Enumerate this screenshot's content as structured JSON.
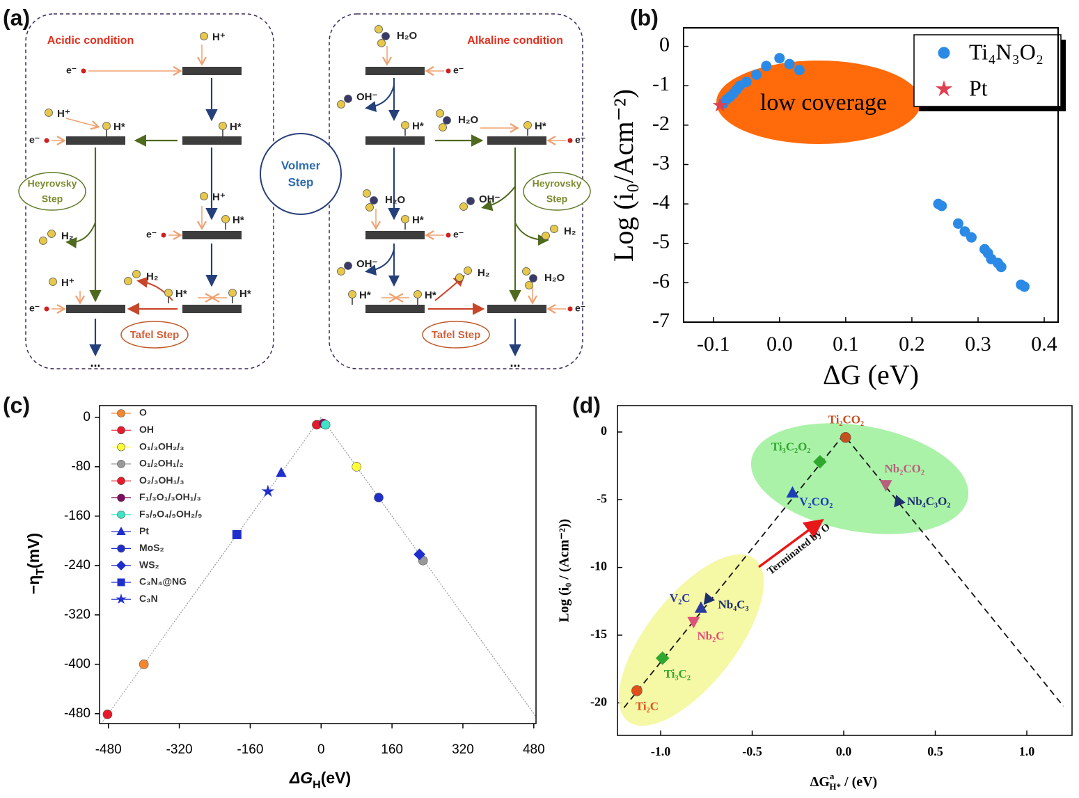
{
  "panel_labels": [
    "(a)",
    "(b)",
    "(c)",
    "(d)"
  ],
  "diagram": {
    "acidic": "Acidic condition",
    "alkaline": "Alkaline condition",
    "volmer": [
      "Volmer",
      "Step"
    ],
    "heyrovsky": [
      "Heyrovsky",
      "Step"
    ],
    "tafel": "Tafel Step",
    "continuation": "...",
    "species": {
      "h_plus": "H⁺",
      "electron": "e⁻",
      "h_star": "H*",
      "h2": "H₂",
      "h2o": "H₂O",
      "oh": "OH⁻"
    }
  },
  "chart_data": [
    {
      "type": "scatter",
      "x_label": "ΔG (eV)",
      "y_label": "Log (i₀/Acm⁻²)",
      "xlim": [
        -0.145,
        0.421
      ],
      "ylim": [
        -7,
        0.47
      ],
      "xticks": [
        -0.1,
        {
          "value": 0,
          "label": "0.0"
        },
        0.1,
        0.2,
        0.3,
        0.4
      ],
      "yticks": [
        0,
        -1,
        -2,
        -3,
        -4,
        -5,
        -6,
        -7
      ],
      "legend": "upper right",
      "series": [
        {
          "name": "Ti₄N₃O₂",
          "color": "#2b8ae6",
          "marker": "circle",
          "x": [
            -0.085,
            -0.08,
            -0.075,
            -0.07,
            -0.065,
            -0.06,
            -0.05,
            -0.035,
            -0.02,
            0.0,
            0.015,
            0.03,
            0.24,
            0.245,
            0.27,
            0.28,
            0.29,
            0.31,
            0.315,
            0.32,
            0.33,
            0.335,
            0.365,
            0.37
          ],
          "y": [
            -1.45,
            -1.35,
            -1.28,
            -1.2,
            -1.1,
            -1.0,
            -0.9,
            -0.72,
            -0.5,
            -0.3,
            -0.45,
            -0.6,
            -4.0,
            -4.05,
            -4.5,
            -4.7,
            -4.85,
            -5.15,
            -5.25,
            -5.4,
            -5.5,
            -5.6,
            -6.05,
            -6.1
          ]
        },
        {
          "name": "Pt",
          "color": "#e0404f",
          "marker": "star",
          "x": [
            -0.09
          ],
          "y": [
            -1.5
          ]
        }
      ],
      "annotations": [
        {
          "text": "low coverage",
          "color": "#ff6a0a"
        }
      ]
    },
    {
      "type": "scatter",
      "x_label": [
        "ΔG",
        "H",
        "(eV)"
      ],
      "y_label": [
        "−η",
        "T",
        "(mV)"
      ],
      "xlim": [
        -500,
        485
      ],
      "ylim": [
        -496,
        19
      ],
      "xticks": [
        -480,
        -320,
        -160,
        0,
        160,
        320,
        480
      ],
      "yticks": [
        0,
        -80,
        -160,
        -240,
        -320,
        -400,
        -480
      ],
      "legend": "upper left",
      "series": [
        {
          "name": "O",
          "color": "#f5862e",
          "marker": "circle",
          "x": [
            -400
          ],
          "y": [
            -400
          ]
        },
        {
          "name": "OH",
          "color": "#e8192c",
          "marker": "circle",
          "x": [
            -10
          ],
          "y": [
            -12
          ]
        },
        {
          "name": "O₁/₃OH₂/₃",
          "color": "#ffff3a",
          "marker": "circle",
          "x": [
            80
          ],
          "y": [
            -80
          ]
        },
        {
          "name": "O₁/₂OH₁/₂",
          "color": "#999999",
          "marker": "circle",
          "x": [
            230
          ],
          "y": [
            -232
          ]
        },
        {
          "name": "O₂/₃OH₁/₃",
          "color": "#e8192c",
          "marker": "circle",
          "x": [
            -482
          ],
          "y": [
            -481
          ]
        },
        {
          "name": "F₁/₃O₁/₃OH₁/₃",
          "color": "#7a0f5e",
          "marker": "circle",
          "x": [
            5
          ],
          "y": [
            -10
          ]
        },
        {
          "name": "F₃/₉O₄/₉OH₂/₉",
          "color": "#3fe3c5",
          "marker": "circle",
          "x": [
            10
          ],
          "y": [
            -12
          ]
        },
        {
          "name": "Pt",
          "color": "#1f2fcc",
          "marker": "triangle-up",
          "x": [
            -90
          ],
          "y": [
            -90
          ]
        },
        {
          "name": "MoS₂",
          "color": "#1f2fcc",
          "marker": "circle",
          "x": [
            130
          ],
          "y": [
            -130
          ]
        },
        {
          "name": "WS₂",
          "color": "#1f2fcc",
          "marker": "diamond",
          "x": [
            222
          ],
          "y": [
            -222
          ]
        },
        {
          "name": "C₃N₄@NG",
          "color": "#1f2fcc",
          "marker": "square",
          "x": [
            -190
          ],
          "y": [
            -190
          ]
        },
        {
          "name": "C₃N",
          "color": "#1f2fcc",
          "marker": "star",
          "x": [
            -120
          ],
          "y": [
            -120
          ]
        }
      ]
    },
    {
      "type": "scatter",
      "x_label": [
        "ΔG",
        "a",
        "H*",
        " / (eV)"
      ],
      "y_label": "Log (i₀ / (Acm⁻²))",
      "xlim": [
        -1.236,
        1.247
      ],
      "ylim": [
        -22.4,
        1.95
      ],
      "xticks": [
        {
          "value": -1,
          "label": "-1.0"
        },
        -0.5,
        {
          "value": 0,
          "label": "0.0"
        },
        0.5,
        {
          "value": 1,
          "label": "1.0"
        }
      ],
      "yticks": [
        0,
        -5,
        -10,
        -15,
        -20
      ],
      "series": [
        {
          "name": "Ti₂CO₂",
          "color": "#c4501c",
          "marker": "circle",
          "x": [
            0.01
          ],
          "y": [
            -0.4
          ]
        },
        {
          "name": "Ti₃C₂O₂",
          "color": "#2fa82f",
          "marker": "diamond",
          "x": [
            -0.13
          ],
          "y": [
            -2.2
          ]
        },
        {
          "name": "Nb₂CO₂",
          "color": "#b8607e",
          "marker": "triangle-down",
          "x": [
            0.23
          ],
          "y": [
            -3.9
          ]
        },
        {
          "name": "V₂CO₂",
          "color": "#1c3fb8",
          "marker": "triangle-up",
          "x": [
            -0.28
          ],
          "y": [
            -4.5
          ]
        },
        {
          "name": "Nb₄C₃O₂",
          "color": "#1c2f6e",
          "marker": "triangle-right",
          "x": [
            0.3
          ],
          "y": [
            -5.1
          ]
        },
        {
          "name": "V₂C",
          "color": "#2a3aa0",
          "marker": "triangle-up",
          "x": [
            -0.78
          ],
          "y": [
            -13.0
          ]
        },
        {
          "name": "Nb₄C₃",
          "color": "#1c2f6e",
          "marker": "triangle-right",
          "x": [
            -0.74
          ],
          "y": [
            -12.3
          ]
        },
        {
          "name": "Nb₂C",
          "color": "#e0507a",
          "marker": "triangle-down",
          "x": [
            -0.82
          ],
          "y": [
            -14.0
          ]
        },
        {
          "name": "Ti₃C₂",
          "color": "#2fa82f",
          "marker": "diamond",
          "x": [
            -0.99
          ],
          "y": [
            -16.7
          ]
        },
        {
          "name": "Ti₂C",
          "color": "#e0501c",
          "marker": "circle",
          "x": [
            -1.13
          ],
          "y": [
            -19.1
          ]
        }
      ],
      "fit_line": {
        "x": [
          -1.2,
          0.0,
          1.2
        ],
        "y": [
          -20.35,
          -0.2,
          -20.25
        ]
      },
      "annotations": [
        {
          "text": "Terminated by O",
          "color": "#e81818"
        }
      ]
    }
  ]
}
